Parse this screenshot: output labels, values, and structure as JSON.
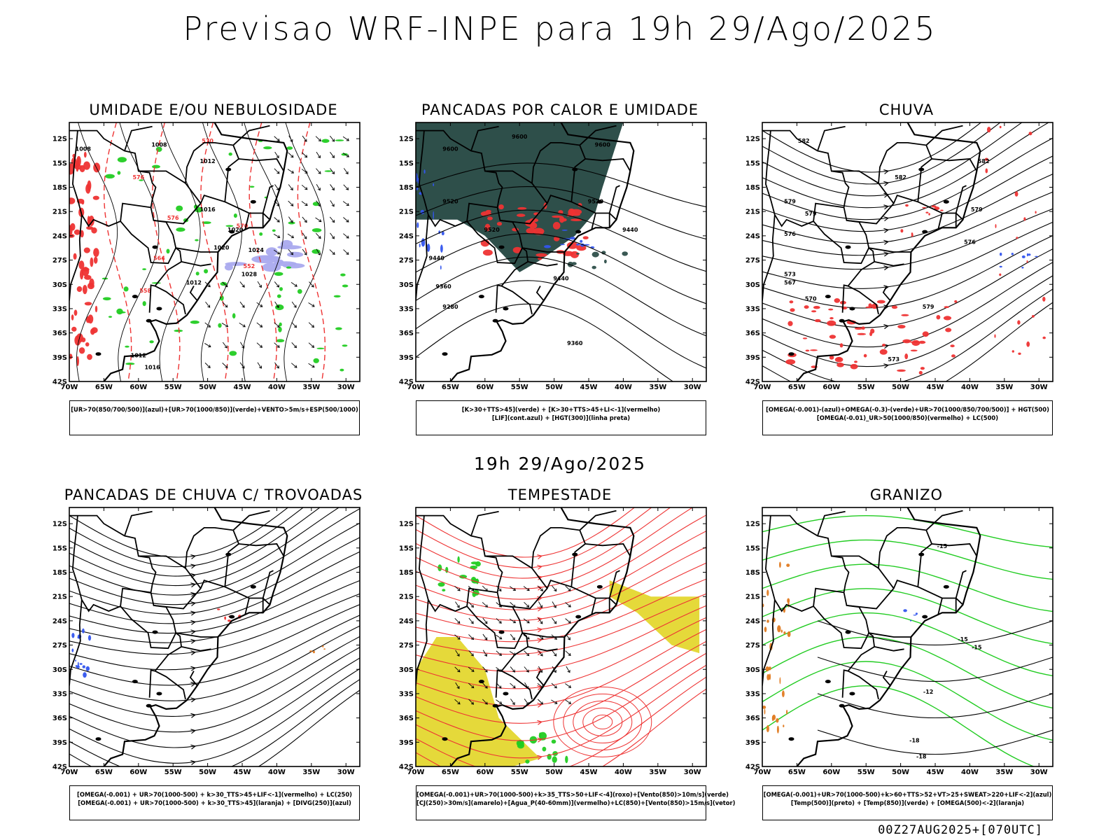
{
  "title": "Previsao WRF-INPE  para 19h 29/Ago/2025",
  "mid_title": "19h 29/Ago/2025",
  "footer": "00Z27AUG2025+[070UTC]",
  "axes": {
    "lat_labels": [
      "12S",
      "15S",
      "18S",
      "21S",
      "24S",
      "27S",
      "30S",
      "33S",
      "36S",
      "39S",
      "42S"
    ],
    "lon_labels": [
      "70W",
      "65W",
      "60W",
      "55W",
      "50W",
      "45W",
      "40W",
      "35W",
      "30W"
    ]
  },
  "colors": {
    "green": "#22cc22",
    "red": "#ee3333",
    "blue": "#3355ee",
    "lavender": "#aaaaee",
    "teal": "#2e4f4a",
    "yellow": "#e5d93a",
    "orange": "#e07a20",
    "black": "#000000"
  },
  "panels": [
    {
      "id": "umidade",
      "title": "UMIDADE E/OU NEBULOSIDADE",
      "legend": [
        "[UR>70(850/700/500)](azul)+[UR>70(1000/850)](verde)+VENTO>5m/s+ESP(500/1000)"
      ],
      "contour_labels": [
        "1008",
        "1008",
        "1012",
        "1012",
        "1016",
        "1020",
        "1020",
        "1024",
        "1028",
        "1012",
        "1016",
        "570",
        "576",
        "576",
        "570",
        "558",
        "564",
        "552"
      ]
    },
    {
      "id": "pancadas-calor",
      "title": "PANCADAS POR CALOR E UMIDADE",
      "legend": [
        "[K>30+TTS>45](verde) + [K>30+TTS>45+LI<-1](vermelho)",
        "[LIF](cont.azul) + [HGT(300)](linha preta)"
      ],
      "contour_labels": [
        "9600",
        "9600",
        "9600",
        "9520",
        "9520",
        "9520",
        "9440",
        "9440",
        "9440",
        "9360",
        "9360",
        "9280"
      ]
    },
    {
      "id": "chuva",
      "title": "CHUVA",
      "legend": [
        "[OMEGA(-0.001)-(azul)+OMEGA(-0.3)-(verde)+UR>70(1000/850/700/500)] + HGT(500)",
        "[OMEGA(-0.01)_UR>50(1000/850)(vermelho) + LC(500)"
      ],
      "contour_labels": [
        "582",
        "582",
        "582",
        "579",
        "579",
        "579",
        "576",
        "576",
        "573",
        "570",
        "567",
        "573",
        "579"
      ]
    },
    {
      "id": "trovoadas",
      "title": "PANCADAS DE CHUVA C/ TROVOADAS",
      "legend": [
        "[OMEGA(-0.001) + UR>70(1000-500) + k>30_TTS>45+LIF<-1](vermelho) + LC(250)",
        "[OMEGA(-0.001) + UR>70(1000-500) + k>30_TTS>45](laranja) + [DIVG(250)](azul)"
      ],
      "contour_labels": []
    },
    {
      "id": "tempestade",
      "title": "TEMPESTADE",
      "legend": [
        "[OMEGA(-0.001)+UR>70(1000-500)+k>35_TTS>50+LIF<-4](roxo)+[Vento(850)>10m/s](verde)",
        "[CJ(250)>30m/s](amarelo)+[Agua_P(40-60mm)](vermelho)+LC(850)+[Vento(850)>15m/s](vetor)"
      ],
      "contour_labels": []
    },
    {
      "id": "granizo",
      "title": "GRANIZO",
      "legend": [
        "[OMEGA(-0.001)+UR>70(1000-500)+k>60+TTS>52+VT>25+SWEAT>220+LIF<-2](azul)",
        "[Temp(500)](preto) + [Temp(850)](verde) + [OMEGA(500)<-2](laranja)"
      ],
      "contour_labels": [
        "-15",
        "-12",
        "-15",
        "-18",
        "-18",
        "-15"
      ]
    }
  ]
}
